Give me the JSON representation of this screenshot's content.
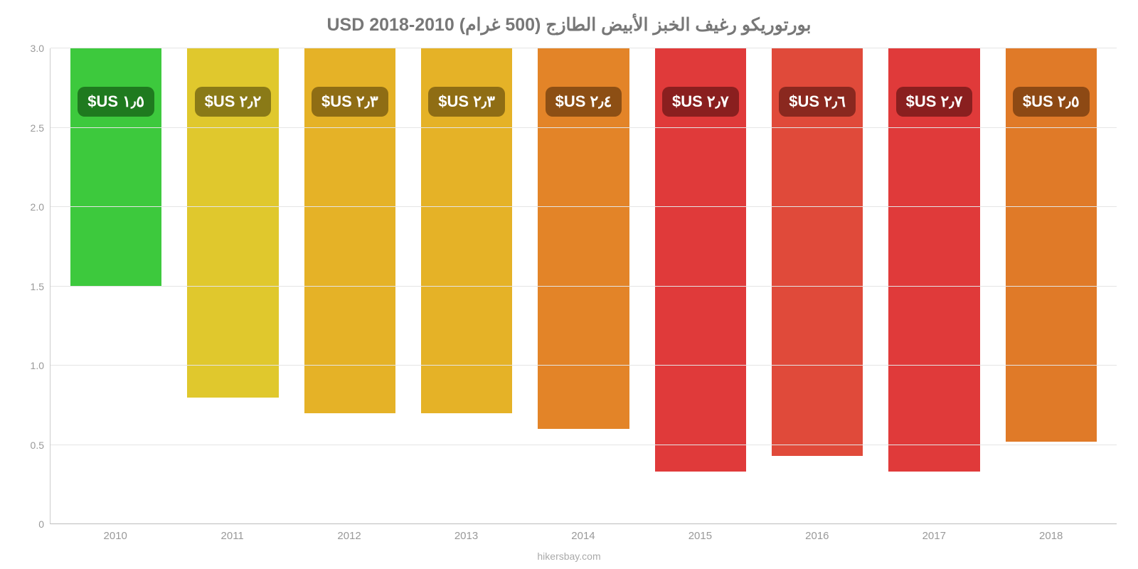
{
  "title": "بورتوريكو رغيف الخبز الأبيض الطازج (500 غرام) 2010-2018 USD",
  "attribution": "hikersbay.com",
  "chart": {
    "type": "bar",
    "background_color": "#ffffff",
    "grid_color": "#e5e5e5",
    "axis_text_color": "#999999",
    "title_color": "#777777",
    "title_fontsize": 25,
    "label_fontsize": 14,
    "value_fontsize": 22,
    "ylim_min": 0,
    "ylim_max": 3.0,
    "ytick_step": 0.5,
    "yticks": [
      {
        "pos": 0,
        "label": "0"
      },
      {
        "pos": 0.5,
        "label": "0.5"
      },
      {
        "pos": 1.0,
        "label": "1.0"
      },
      {
        "pos": 1.5,
        "label": "1.5"
      },
      {
        "pos": 2.0,
        "label": "2.0"
      },
      {
        "pos": 2.5,
        "label": "2.5"
      },
      {
        "pos": 3.0,
        "label": "3.0"
      }
    ],
    "categories": [
      "2010",
      "2011",
      "2012",
      "2013",
      "2014",
      "2015",
      "2016",
      "2017",
      "2018"
    ],
    "bars": [
      {
        "value": 1.5,
        "label": "‏١٫٥ US$",
        "color": "#3dc93d",
        "badge_bg": "#1f7a1f"
      },
      {
        "value": 2.2,
        "label": "‏٢٫٢ US$",
        "color": "#e0c82d",
        "badge_bg": "#8a7a17"
      },
      {
        "value": 2.3,
        "label": "‏٢٫٣ US$",
        "color": "#e5b227",
        "badge_bg": "#8f6d14"
      },
      {
        "value": 2.3,
        "label": "‏٢٫٣ US$",
        "color": "#e5b227",
        "badge_bg": "#8f6d14"
      },
      {
        "value": 2.4,
        "label": "‏٢٫٤ US$",
        "color": "#e38428",
        "badge_bg": "#8d4f14"
      },
      {
        "value": 2.67,
        "label": "‏٢٫٧ US$",
        "color": "#e03a3a",
        "badge_bg": "#8a1f1f"
      },
      {
        "value": 2.57,
        "label": "‏٢٫٦ US$",
        "color": "#e04a3a",
        "badge_bg": "#8a281f"
      },
      {
        "value": 2.67,
        "label": "‏٢٫٧ US$",
        "color": "#e03a3a",
        "badge_bg": "#8a1f1f"
      },
      {
        "value": 2.48,
        "label": "‏٢٫٥ US$",
        "color": "#e07a28",
        "badge_bg": "#8d4914"
      }
    ],
    "bar_width_pct": 78
  }
}
